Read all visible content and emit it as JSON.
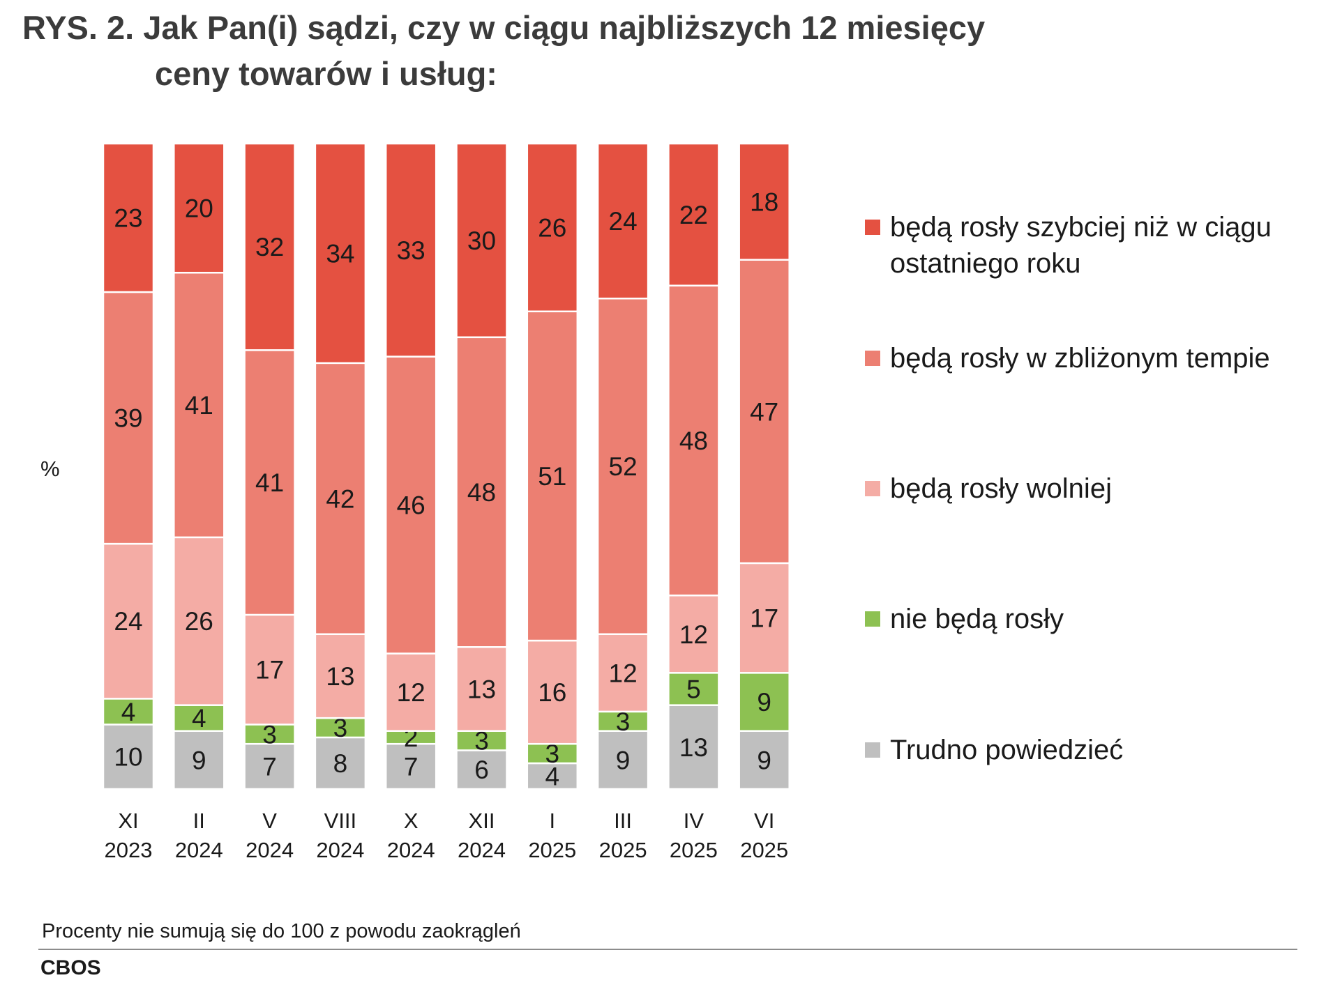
{
  "title": {
    "line1": "RYS. 2. Jak Pan(i) sądzi, czy w ciągu najbliższych 12 miesięcy",
    "line2": "ceny towarów i usług:"
  },
  "y_unit": "%",
  "footnote": "Procenty nie sumują się do 100 z powodu zaokrągleń",
  "source": "CBOS",
  "chart_data": {
    "type": "bar",
    "stacked": true,
    "categories": [
      [
        "XI",
        "2023"
      ],
      [
        "II",
        "2024"
      ],
      [
        "V",
        "2024"
      ],
      [
        "VIII",
        "2024"
      ],
      [
        "X",
        "2024"
      ],
      [
        "XII",
        "2024"
      ],
      [
        "I",
        "2025"
      ],
      [
        "III",
        "2025"
      ],
      [
        "IV",
        "2025"
      ],
      [
        "VI",
        "2025"
      ]
    ],
    "ylabel": "%",
    "legend_position": "right",
    "series": [
      {
        "name": "Trudno powiedzieć",
        "color": "#bfbfbf",
        "values": [
          10,
          9,
          7,
          8,
          7,
          6,
          4,
          9,
          13,
          9
        ]
      },
      {
        "name": "nie będą rosły",
        "color": "#8dc152",
        "values": [
          4,
          4,
          3,
          3,
          2,
          3,
          3,
          3,
          5,
          9
        ]
      },
      {
        "name": "będą rosły wolniej",
        "color": "#f4aca5",
        "values": [
          24,
          26,
          17,
          13,
          12,
          13,
          16,
          12,
          12,
          17
        ]
      },
      {
        "name": "będą rosły w zbliżonym tempie",
        "color": "#ec7f72",
        "values": [
          39,
          41,
          41,
          42,
          46,
          48,
          51,
          52,
          48,
          47
        ]
      },
      {
        "name": "będą rosły szybciej niż w ciągu ostatniego roku",
        "color": "#e45141",
        "values": [
          23,
          20,
          32,
          34,
          33,
          30,
          26,
          24,
          22,
          18
        ]
      }
    ],
    "legend_order": [
      4,
      3,
      2,
      1,
      0
    ],
    "legend_lines": [
      [
        "będą rosły szybciej niż w ciągu",
        "ostatniego roku"
      ],
      [
        "będą rosły w zbliżonym tempie"
      ],
      [
        "będą rosły wolniej"
      ],
      [
        "nie będą rosły"
      ],
      [
        "Trudno powiedzieć"
      ]
    ]
  }
}
